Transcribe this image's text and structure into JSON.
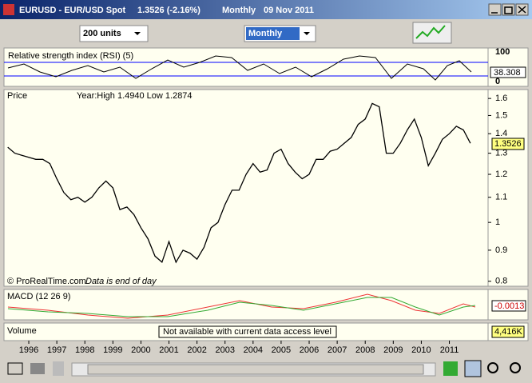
{
  "window": {
    "symbol": "EURUSD - EUR/USD Spot",
    "quote": "1.3526 (-2.16%)",
    "period": "Monthly",
    "date": "09 Nov 2011"
  },
  "toolbar": {
    "units": "200 units",
    "timeframe": "Monthly"
  },
  "rsi": {
    "label": "Relative strength index (RSI) (5)",
    "axis_top": "100",
    "value": "38.308",
    "axis_bottom": "0"
  },
  "price_panel": {
    "label": "Price",
    "info": "Year:High 1.4940 Low 1.2874",
    "source": "© ProRealTime.com",
    "note": "Data is end of day",
    "last": "1.3526"
  },
  "chart_data": {
    "type": "line",
    "color": "#000000",
    "log_scale": true,
    "categories": [
      null,
      null,
      null,
      "1996",
      null,
      null,
      null,
      "1997",
      null,
      null,
      null,
      "1998",
      null,
      null,
      null,
      "1999",
      null,
      null,
      null,
      "2000",
      null,
      null,
      null,
      "2001",
      null,
      null,
      null,
      "2002",
      null,
      null,
      null,
      "2003",
      null,
      null,
      null,
      "2004",
      null,
      null,
      null,
      "2005",
      null,
      null,
      null,
      "2006",
      null,
      null,
      null,
      "2007",
      null,
      null,
      null,
      "2008",
      null,
      null,
      null,
      "2009",
      null,
      null,
      null,
      "2010",
      null,
      null,
      null,
      "2011",
      null,
      null,
      null
    ],
    "values": [
      1.33,
      1.3,
      1.29,
      1.28,
      1.27,
      1.27,
      1.25,
      1.18,
      1.12,
      1.09,
      1.1,
      1.08,
      1.1,
      1.14,
      1.17,
      1.14,
      1.05,
      1.06,
      1.03,
      0.98,
      0.94,
      0.88,
      0.86,
      0.93,
      0.86,
      0.9,
      0.89,
      0.87,
      0.91,
      0.98,
      1.0,
      1.07,
      1.13,
      1.13,
      1.2,
      1.25,
      1.21,
      1.22,
      1.3,
      1.32,
      1.25,
      1.21,
      1.18,
      1.2,
      1.27,
      1.27,
      1.31,
      1.32,
      1.35,
      1.38,
      1.45,
      1.48,
      1.57,
      1.55,
      1.3,
      1.3,
      1.35,
      1.42,
      1.48,
      1.38,
      1.24,
      1.3,
      1.37,
      1.4,
      1.44,
      1.42,
      1.35
    ],
    "ylim": [
      0.785,
      1.655
    ],
    "yticks": [
      1.6,
      1.5,
      1.4,
      1.3,
      1.2,
      1.1,
      1,
      0.9,
      0.8
    ]
  },
  "macd": {
    "label": "MACD (12 26 9)",
    "value": "-0.0013"
  },
  "volume": {
    "label": "Volume",
    "message": "Not available with current data access level",
    "value": "4,416K"
  }
}
